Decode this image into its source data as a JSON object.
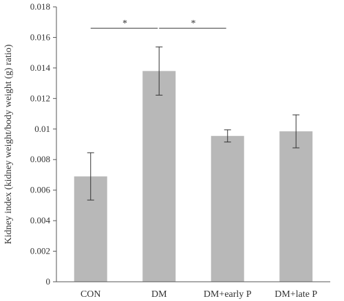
{
  "chart_data": {
    "type": "bar",
    "categories": [
      "CON",
      "DM",
      "DM+early P",
      "DM+late P"
    ],
    "values": [
      0.0069,
      0.0138,
      0.00955,
      0.00985
    ],
    "errors": [
      0.00155,
      0.00158,
      0.0004,
      0.00108
    ],
    "ylabel": "Kidney index (kidney weight/body weight (g) ratio)",
    "ylim": [
      0,
      0.018
    ],
    "yticks": [
      0,
      0.002,
      0.004,
      0.006,
      0.008,
      0.01,
      0.012,
      0.014,
      0.016,
      0.018
    ],
    "ytick_labels": [
      "0",
      "0.002",
      "0.004",
      "0.006",
      "0.008",
      "0.01",
      "0.012",
      "0.014",
      "0.016",
      "0.018"
    ],
    "grid": false,
    "bar_color": "#b8b8b8",
    "significance": [
      {
        "from": 0,
        "to": 1,
        "label": "*",
        "level": 0.0166
      },
      {
        "from": 1,
        "to": 2,
        "label": "*",
        "level": 0.0166
      }
    ]
  }
}
